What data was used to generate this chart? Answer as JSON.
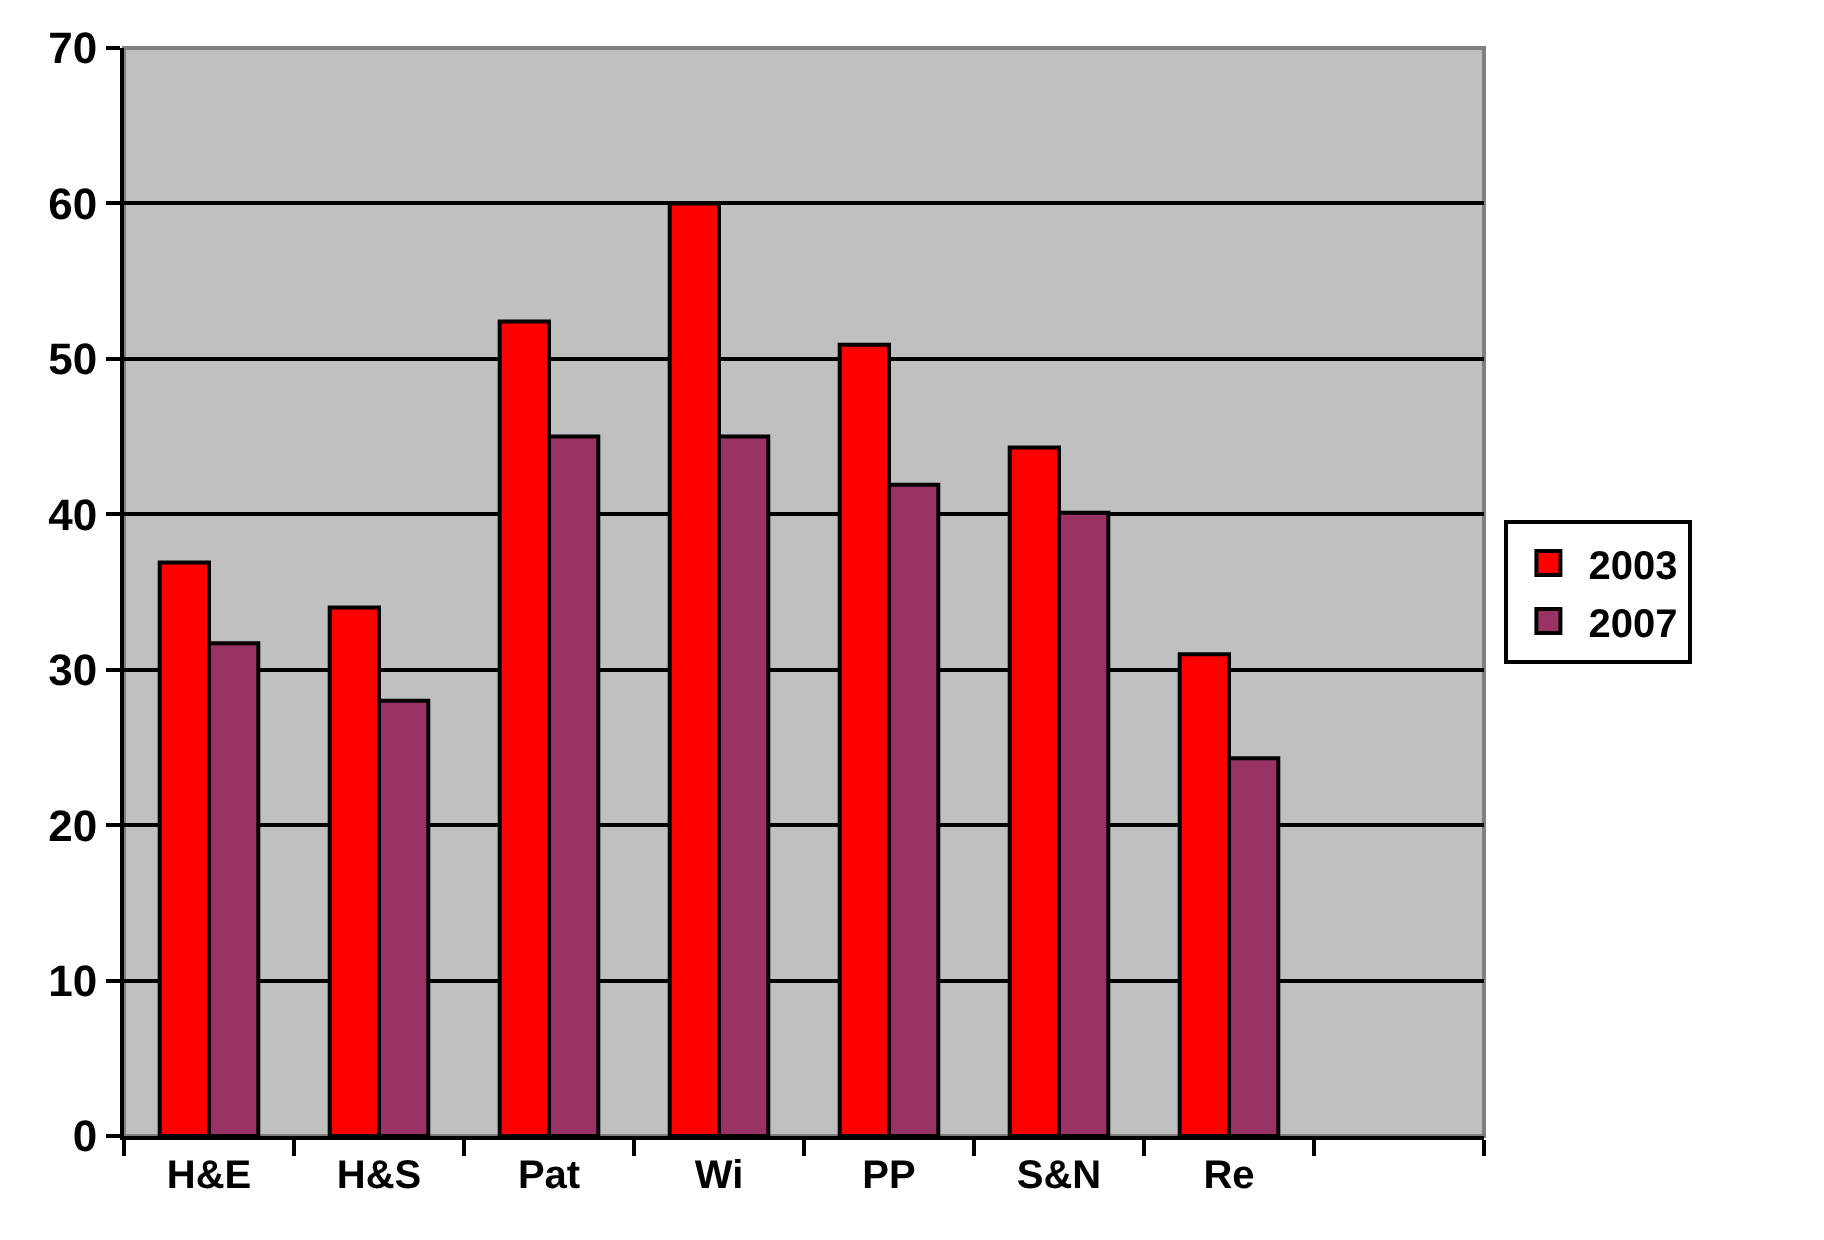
{
  "chart_data": {
    "type": "bar",
    "categories": [
      "H&E",
      "H&S",
      "Pat",
      "Wi",
      "PP",
      "S&N",
      "Re",
      null
    ],
    "series": [
      {
        "name": "2003",
        "color": "#ff0000",
        "values": [
          36.9,
          34,
          52.4,
          60,
          50.9,
          44.3,
          31,
          null
        ]
      },
      {
        "name": "2007",
        "color": "#993366",
        "values": [
          31.7,
          28,
          45,
          45,
          41.9,
          40.1,
          24.3,
          null
        ]
      }
    ],
    "ylim": [
      0,
      70
    ],
    "yticks": [
      0,
      10,
      20,
      30,
      40,
      50,
      60,
      70
    ],
    "grid": "y",
    "legend": "right"
  }
}
